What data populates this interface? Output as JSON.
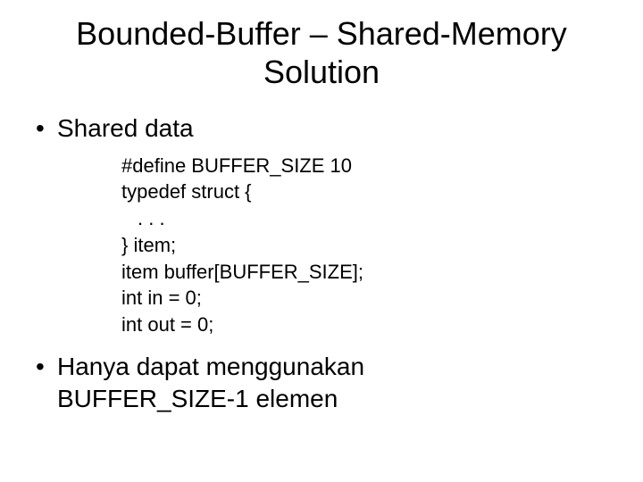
{
  "slide": {
    "title_line1": "Bounded-Buffer – Shared-Memory",
    "title_line2": "Solution",
    "bullet1": "Shared data",
    "code": {
      "l1": "#define BUFFER_SIZE 10",
      "l2": "typedef struct {",
      "l3": ". . .",
      "l4": "} item;",
      "l5": "item buffer[BUFFER_SIZE];",
      "l6": "int in = 0;",
      "l7": "int out = 0;"
    },
    "bullet2_line1": "Hanya dapat menggunakan",
    "bullet2_line2": "BUFFER_SIZE-1 elemen"
  },
  "style": {
    "background_color": "#ffffff",
    "text_color": "#000000",
    "title_fontsize": 36,
    "bullet_fontsize": 28,
    "code_fontsize": 22,
    "font_family": "Arial"
  }
}
